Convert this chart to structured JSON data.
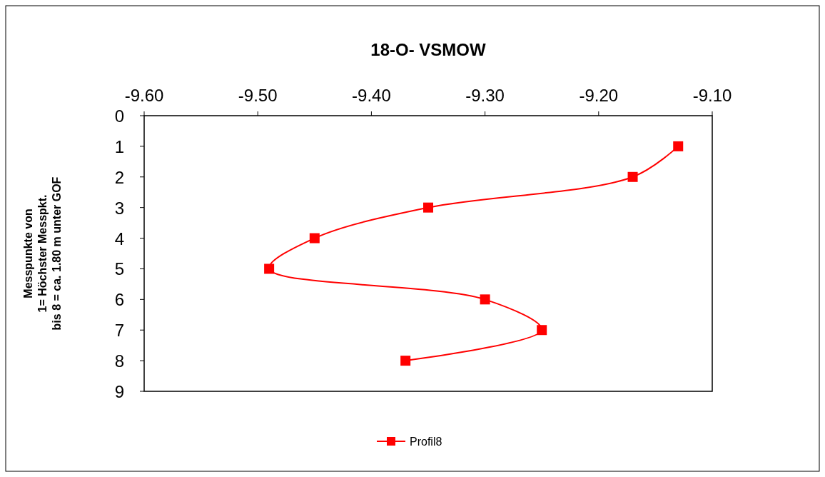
{
  "chart_data": {
    "type": "line",
    "title": "18-O- VSMOW",
    "ylabel": "Messpunkte von\n1= Höchster Messpkt.\nbis 8 = ca. 1.80 m unter GOF",
    "xlim": [
      -9.6,
      -9.1
    ],
    "xticks": [
      {
        "value": -9.6,
        "label": "-9.60"
      },
      {
        "value": -9.5,
        "label": "-9.50"
      },
      {
        "value": -9.4,
        "label": "-9.40"
      },
      {
        "value": -9.3,
        "label": "-9.30"
      },
      {
        "value": -9.2,
        "label": "-9.20"
      },
      {
        "value": -9.1,
        "label": "-9.10"
      }
    ],
    "ylim": [
      9,
      0
    ],
    "yticks": [
      0,
      1,
      2,
      3,
      4,
      5,
      6,
      7,
      8,
      9
    ],
    "grid": false,
    "legend": "bottom",
    "marker": "square",
    "line_style": "solid",
    "series": [
      {
        "name": "Profil8",
        "color": "#ff0000",
        "x": [
          -9.13,
          -9.17,
          -9.35,
          -9.45,
          -9.49,
          -9.3,
          -9.25,
          -9.37
        ],
        "values": [
          1,
          2,
          3,
          4,
          5,
          6,
          7,
          8
        ]
      }
    ]
  }
}
